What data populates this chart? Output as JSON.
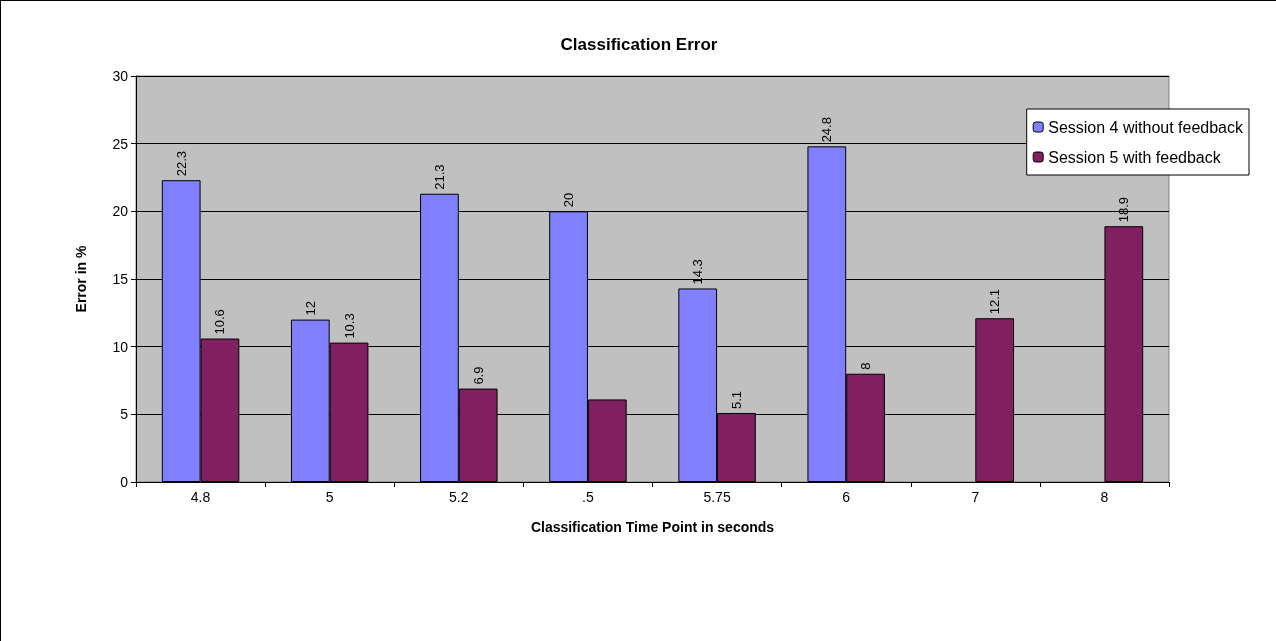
{
  "chart_data": {
    "type": "bar",
    "title": "Classification Error",
    "xlabel": "Classification Time Point in seconds",
    "ylabel": "Error in %",
    "categories": [
      "4.8",
      "5",
      "5.2",
      ".5",
      "5.75",
      "6",
      "7",
      "8"
    ],
    "series": [
      {
        "name": "Session 4 without feedback",
        "color": "#8080ff",
        "values": [
          22.3,
          12,
          21.3,
          20,
          14.3,
          24.8,
          null,
          null
        ],
        "value_labels": [
          "22.3",
          "12",
          "21.3",
          "20",
          "14.3",
          "24.8",
          null,
          null
        ]
      },
      {
        "name": "Session 5 with feedback",
        "color": "#802060",
        "values": [
          10.6,
          10.3,
          6.9,
          6.1,
          5.1,
          8,
          12.1,
          18.9
        ],
        "value_labels": [
          "10.6",
          "10.3",
          "6.9",
          null,
          "5.1",
          "8",
          "12.1",
          "18.9"
        ]
      }
    ],
    "ylim": [
      0,
      30
    ],
    "yticks": [
      0,
      5,
      10,
      15,
      20,
      25,
      30
    ],
    "grid": "y",
    "legend": "top right"
  }
}
